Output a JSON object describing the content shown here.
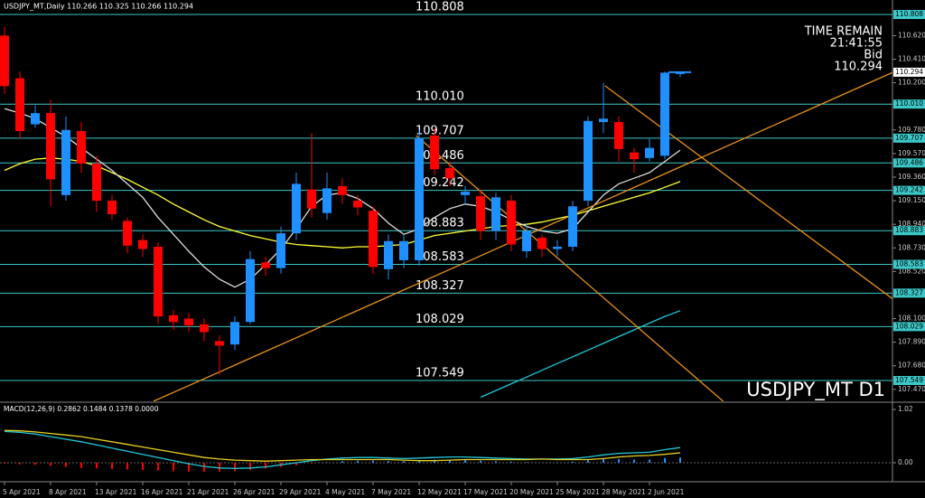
{
  "chart_data": [
    {
      "type": "candlestick",
      "title": "USDJPY_MT,Daily 110.266 110.325 110.266 110.294",
      "time_remain": "TIME REMAIN",
      "timer": "21:41:55",
      "bid_label": "Bid",
      "bid": 110.294,
      "symbol": "USDJPY_MT D1",
      "categories": [
        "5 Apr 2021",
        null,
        null,
        "8 Apr 2021",
        null,
        null,
        "13 Apr 2021",
        null,
        null,
        "16 Apr 2021",
        null,
        null,
        "21 Apr 2021",
        null,
        null,
        "26 Apr 2021",
        null,
        null,
        "29 Apr 2021",
        null,
        null,
        "4 May 2021",
        null,
        null,
        "7 May 2021",
        null,
        null,
        "12 May 2021",
        null,
        null,
        "17 May 2021",
        null,
        null,
        "20 May 2021",
        null,
        null,
        "25 May 2021",
        null,
        null,
        "28 May 2021",
        null,
        null,
        "2 Jun 2021",
        null,
        null
      ],
      "open": [
        110.62,
        110.24,
        109.83,
        109.93,
        109.2,
        109.77,
        109.48,
        109.15,
        108.97,
        108.8,
        108.74,
        108.13,
        108.1,
        108.05,
        107.9,
        107.87,
        108.07,
        108.6,
        108.55,
        108.86,
        109.25,
        109.04,
        109.28,
        109.15,
        109.06,
        108.54,
        108.62,
        108.62,
        109.73,
        109.44,
        109.2,
        109.19,
        108.88,
        109.15,
        108.7,
        108.82,
        108.72,
        108.74,
        109.15,
        109.85,
        109.85,
        109.58,
        109.53,
        109.55,
        110.28
      ],
      "high": [
        110.7,
        110.3,
        110.0,
        110.05,
        109.9,
        109.85,
        109.55,
        109.2,
        109.0,
        108.85,
        108.78,
        108.18,
        108.15,
        108.1,
        107.95,
        108.12,
        108.7,
        108.65,
        108.92,
        109.4,
        109.75,
        109.4,
        109.35,
        109.2,
        109.1,
        108.85,
        108.85,
        109.78,
        109.8,
        109.5,
        109.28,
        109.25,
        109.22,
        109.2,
        108.95,
        108.85,
        108.8,
        109.15,
        109.9,
        110.2,
        109.9,
        109.62,
        109.7,
        110.3,
        110.3
      ],
      "low": [
        110.1,
        109.7,
        109.8,
        109.1,
        109.15,
        109.4,
        109.05,
        108.98,
        108.68,
        108.65,
        108.05,
        108.0,
        107.98,
        107.9,
        107.6,
        107.82,
        108.05,
        108.48,
        108.5,
        108.8,
        109.0,
        108.98,
        109.12,
        109.02,
        108.5,
        108.45,
        108.55,
        108.57,
        109.38,
        109.28,
        109.12,
        108.8,
        108.8,
        108.7,
        108.64,
        108.65,
        108.66,
        108.7,
        109.1,
        109.75,
        109.5,
        109.4,
        109.5,
        109.52,
        110.25
      ],
      "close": [
        110.17,
        109.77,
        109.93,
        109.34,
        109.78,
        109.48,
        109.15,
        109.03,
        108.75,
        108.72,
        108.12,
        108.07,
        108.04,
        107.98,
        107.86,
        108.07,
        108.63,
        108.55,
        108.86,
        109.3,
        109.08,
        109.26,
        109.2,
        109.09,
        108.56,
        108.79,
        108.79,
        109.71,
        109.43,
        109.35,
        109.23,
        108.88,
        109.18,
        108.76,
        108.88,
        108.72,
        108.74,
        109.1,
        109.86,
        109.88,
        109.61,
        109.52,
        109.62,
        110.29,
        110.29
      ],
      "up_color": "#1e90ff",
      "down_color": "#ff0000",
      "ylim": [
        107.364,
        110.937
      ],
      "yticks": [
        {
          "value": 110.62,
          "label": "110.620"
        },
        {
          "value": 110.41,
          "label": "110.410"
        },
        {
          "value": 110.2,
          "label": "110.200"
        },
        {
          "value": 109.78,
          "label": "109.780"
        },
        {
          "value": 109.57,
          "label": "109.570"
        },
        {
          "value": 109.36,
          "label": "109.360"
        },
        {
          "value": 109.15,
          "label": "109.150"
        },
        {
          "value": 108.94,
          "label": "108.940"
        },
        {
          "value": 108.73,
          "label": "108.730"
        },
        {
          "value": 108.52,
          "label": "108.520"
        },
        {
          "value": 108.1,
          "label": "108.100"
        },
        {
          "value": 107.89,
          "label": "107.890"
        },
        {
          "value": 107.68,
          "label": "107.680"
        },
        {
          "value": 107.47,
          "label": "107.470"
        }
      ],
      "levels": [
        110.808,
        {
          "value": 110.01,
          "label": "110.010"
        },
        109.707,
        109.486,
        109.242,
        108.883,
        108.583,
        108.327,
        108.029,
        107.549
      ],
      "level_color": "#3cc8c8",
      "series": [
        {
          "color": "#ffff33",
          "values": [
            109.42,
            109.48,
            109.52,
            109.53,
            109.52,
            109.5,
            109.46,
            109.4,
            109.34,
            109.27,
            109.2,
            109.12,
            109.05,
            108.98,
            108.92,
            108.88,
            108.84,
            108.81,
            108.78,
            108.76,
            108.75,
            108.74,
            108.73,
            108.74,
            108.74,
            108.75,
            108.76,
            108.8,
            108.84,
            108.86,
            108.88,
            108.9,
            108.92,
            108.93,
            108.94,
            108.96,
            108.99,
            109.02,
            109.06,
            109.1,
            109.14,
            109.18,
            109.22,
            109.27,
            109.32
          ]
        },
        {
          "color": "#dddddd",
          "values": [
            109.97,
            109.93,
            109.88,
            109.8,
            109.72,
            109.62,
            109.52,
            109.42,
            109.3,
            109.18,
            109.0,
            108.85,
            108.7,
            108.56,
            108.45,
            108.38,
            108.45,
            108.58,
            108.72,
            108.9,
            109.1,
            109.2,
            109.22,
            109.17,
            109.08,
            108.95,
            108.85,
            108.9,
            109.0,
            109.08,
            109.12,
            109.1,
            109.05,
            108.98,
            108.92,
            108.88,
            108.86,
            108.9,
            109.05,
            109.2,
            109.3,
            109.35,
            109.4,
            109.5,
            109.6
          ]
        },
        {
          "color": "#20c8d8",
          "values": [
            null,
            null,
            null,
            null,
            null,
            null,
            null,
            null,
            null,
            null,
            null,
            null,
            null,
            null,
            null,
            null,
            null,
            null,
            null,
            null,
            null,
            null,
            null,
            null,
            null,
            null,
            null,
            null,
            null,
            null,
            null,
            107.4,
            107.46,
            107.52,
            107.58,
            107.64,
            107.7,
            107.76,
            107.82,
            107.88,
            107.94,
            108.0,
            108.06,
            108.12,
            108.17
          ]
        }
      ],
      "trendlines": [
        {
          "color": "#e8901a",
          "x": [
            9.7,
            57.8
          ],
          "values": [
            107.364,
            110.29
          ]
        },
        {
          "color": "#e8901a",
          "x": [
            39.1,
            57.8
          ],
          "values": [
            110.173,
            108.28
          ]
        },
        {
          "color": "#e8901a",
          "x": [
            26.8,
            46.8
          ],
          "values": [
            109.73,
            107.364
          ]
        }
      ]
    },
    {
      "type": "macd",
      "title": "MACD(12,26,9) 0.2862 0.1484 0.1378 0.0000",
      "ylim": [
        -0.329,
        1.141
      ],
      "yticks": [
        1.02,
        {
          "value": 0,
          "label": "0.00"
        }
      ],
      "histogram": {
        "up_color": "#1e90ff",
        "down_color": "#ff0000",
        "values": [
          -0.02,
          -0.03,
          -0.04,
          -0.06,
          -0.08,
          -0.1,
          -0.11,
          -0.12,
          -0.13,
          -0.14,
          -0.15,
          -0.16,
          -0.17,
          -0.17,
          -0.17,
          -0.16,
          -0.14,
          -0.11,
          -0.08,
          -0.05,
          -0.02,
          0.01,
          0.03,
          0.04,
          0.04,
          0.03,
          0.03,
          0.05,
          0.06,
          0.06,
          0.05,
          0.04,
          0.03,
          0.02,
          0.01,
          0.0,
          0.01,
          0.02,
          0.05,
          0.07,
          0.07,
          0.06,
          0.06,
          0.09,
          0.1
        ]
      },
      "series": [
        {
          "color": "#20c8d8",
          "values": [
            0.6,
            0.58,
            0.55,
            0.5,
            0.45,
            0.4,
            0.34,
            0.28,
            0.22,
            0.16,
            0.1,
            0.04,
            -0.02,
            -0.07,
            -0.1,
            -0.11,
            -0.1,
            -0.08,
            -0.04,
            0.0,
            0.04,
            0.07,
            0.09,
            0.1,
            0.1,
            0.09,
            0.08,
            0.09,
            0.1,
            0.11,
            0.11,
            0.1,
            0.09,
            0.08,
            0.07,
            0.07,
            0.07,
            0.08,
            0.11,
            0.15,
            0.18,
            0.19,
            0.2,
            0.25,
            0.29
          ]
        },
        {
          "color": "#e8d020",
          "values": [
            0.62,
            0.61,
            0.59,
            0.56,
            0.53,
            0.5,
            0.45,
            0.4,
            0.35,
            0.3,
            0.25,
            0.2,
            0.15,
            0.1,
            0.07,
            0.05,
            0.04,
            0.03,
            0.04,
            0.05,
            0.06,
            0.06,
            0.06,
            0.06,
            0.06,
            0.06,
            0.05,
            0.04,
            0.04,
            0.05,
            0.06,
            0.06,
            0.06,
            0.06,
            0.06,
            0.07,
            0.06,
            0.06,
            0.06,
            0.08,
            0.11,
            0.13,
            0.14,
            0.16,
            0.19
          ]
        }
      ]
    }
  ]
}
